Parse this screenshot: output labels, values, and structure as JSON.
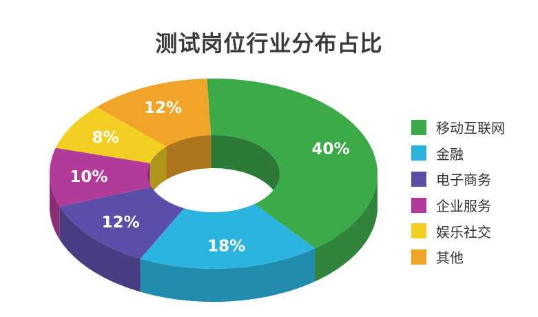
{
  "chart_data": {
    "type": "pie",
    "title": "测试岗位行业分布占比",
    "categories": [
      "移动互联网",
      "金融",
      "电子商务",
      "企业服务",
      "娱乐社交",
      "其他"
    ],
    "values": [
      40,
      18,
      12,
      10,
      8,
      12
    ],
    "value_labels": [
      "40%",
      "18%",
      "12%",
      "10%",
      "8%",
      "12%"
    ],
    "colors": [
      "#3daa4a",
      "#2cb4e0",
      "#5b4ea8",
      "#b23b99",
      "#f3cf23",
      "#f0a428"
    ],
    "style": "3d-donut",
    "legend_position": "right"
  }
}
